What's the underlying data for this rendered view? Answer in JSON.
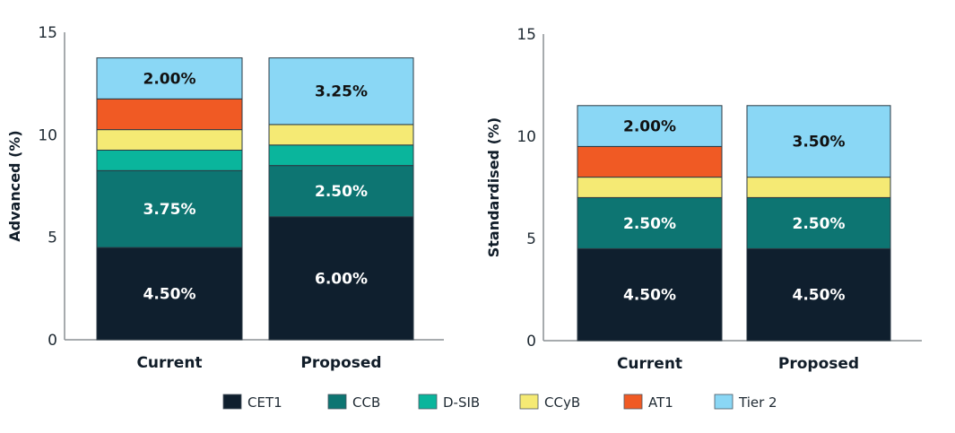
{
  "chart_data": [
    {
      "type": "bar",
      "stacked": true,
      "title": "",
      "xlabel": "",
      "ylabel": "Advanced (%)",
      "ylim": [
        0,
        15
      ],
      "yticks": [
        "0",
        "5",
        "10",
        "15"
      ],
      "categories": [
        "Current",
        "Proposed"
      ],
      "series": [
        {
          "name": "CET1",
          "values": [
            4.5,
            6.0
          ],
          "labels": [
            "4.50%",
            "6.00%"
          ]
        },
        {
          "name": "CCB",
          "values": [
            3.75,
            2.5
          ],
          "labels": [
            "3.75%",
            "2.50%"
          ]
        },
        {
          "name": "D-SIB",
          "values": [
            1.0,
            1.0
          ],
          "labels": [
            "",
            ""
          ]
        },
        {
          "name": "CCyB",
          "values": [
            1.0,
            1.0
          ],
          "labels": [
            "",
            ""
          ]
        },
        {
          "name": "AT1",
          "values": [
            1.5,
            0
          ],
          "labels": [
            "",
            ""
          ]
        },
        {
          "name": "Tier 2",
          "values": [
            2.0,
            3.25
          ],
          "labels": [
            "2.00%",
            "3.25%"
          ]
        }
      ],
      "grid": false
    },
    {
      "type": "bar",
      "stacked": true,
      "title": "",
      "xlabel": "",
      "ylabel": "Standardised (%)",
      "ylim": [
        0,
        15
      ],
      "yticks": [
        "0",
        "5",
        "10",
        "15"
      ],
      "categories": [
        "Current",
        "Proposed"
      ],
      "series": [
        {
          "name": "CET1",
          "values": [
            4.5,
            4.5
          ],
          "labels": [
            "4.50%",
            "4.50%"
          ]
        },
        {
          "name": "CCB",
          "values": [
            2.5,
            2.5
          ],
          "labels": [
            "2.50%",
            "2.50%"
          ]
        },
        {
          "name": "D-SIB",
          "values": [
            0,
            0
          ],
          "labels": [
            "",
            ""
          ]
        },
        {
          "name": "CCyB",
          "values": [
            1.0,
            1.0
          ],
          "labels": [
            "",
            ""
          ]
        },
        {
          "name": "AT1",
          "values": [
            1.5,
            0
          ],
          "labels": [
            "",
            ""
          ]
        },
        {
          "name": "Tier 2",
          "values": [
            2.0,
            3.5
          ],
          "labels": [
            "2.00%",
            "3.50%"
          ]
        }
      ],
      "grid": false
    }
  ],
  "legend": {
    "position": "bottom",
    "items": [
      {
        "name": "CET1",
        "color": "#0f1f2e",
        "label_color": "#ffffff"
      },
      {
        "name": "CCB",
        "color": "#0d7572",
        "label_color": "#ffffff"
      },
      {
        "name": "D-SIB",
        "color": "#0ab59c",
        "label_color": "#ffffff"
      },
      {
        "name": "CCyB",
        "color": "#f5ea74",
        "label_color": "#111111"
      },
      {
        "name": "AT1",
        "color": "#f05a24",
        "label_color": "#111111"
      },
      {
        "name": "Tier 2",
        "color": "#8ad7f5",
        "label_color": "#111111"
      }
    ]
  }
}
